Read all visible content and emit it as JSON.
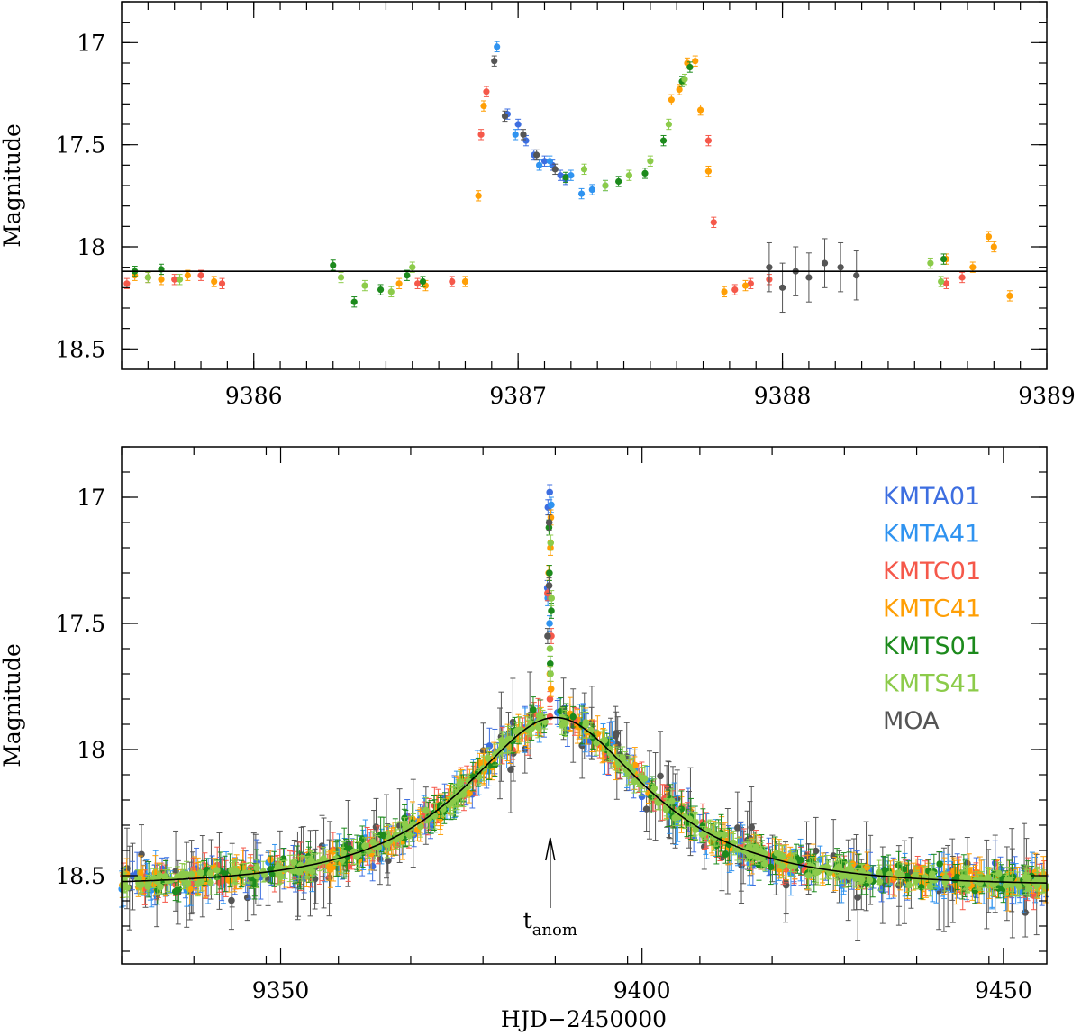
{
  "colors": {
    "KMTA01": "#3d6ee0",
    "KMTA41": "#2f93f0",
    "KMTC01": "#f5584a",
    "KMTC41": "#ff9f05",
    "KMTS01": "#1c8a1c",
    "KMTS41": "#8ccb4a",
    "MOA": "#555555",
    "model": "#000000"
  },
  "chart_data": [
    {
      "type": "scatter",
      "panel": "top",
      "xlim": [
        9385.5,
        9389.0
      ],
      "ylim": [
        18.6,
        16.8
      ],
      "y_inverted": true,
      "xticks": [
        9386,
        9387,
        9388,
        9389
      ],
      "xtick_labels": [
        "9386",
        "9387",
        "9388",
        "9389"
      ],
      "yticks": [
        17.0,
        17.5,
        18.0,
        18.5
      ],
      "ytick_labels": [
        "17",
        "17.5",
        "18",
        "18.5"
      ],
      "xlabel": "",
      "ylabel": "Magnitude",
      "model_line": {
        "description": "baseline",
        "x": [
          9385.5,
          9389.0
        ],
        "y": [
          18.12,
          18.12
        ]
      },
      "series": [
        {
          "name": "KMTA01",
          "points": [
            [
              9386.96,
              17.35
            ],
            [
              9387.0,
              17.4
            ],
            [
              9387.03,
              17.48
            ],
            [
              9387.06,
              17.55
            ],
            [
              9387.1,
              17.58
            ],
            [
              9387.13,
              17.6
            ],
            [
              9387.16,
              17.65
            ],
            [
              9387.18,
              17.67
            ]
          ]
        },
        {
          "name": "KMTA41",
          "points": [
            [
              9386.92,
              17.02
            ],
            [
              9386.99,
              17.45
            ],
            [
              9387.08,
              17.6
            ],
            [
              9387.12,
              17.58
            ],
            [
              9387.2,
              17.65
            ],
            [
              9387.24,
              17.74
            ],
            [
              9387.28,
              17.72
            ],
            [
              9387.33,
              17.7
            ]
          ]
        },
        {
          "name": "KMTC01",
          "points": [
            [
              9385.52,
              18.18
            ],
            [
              9385.6,
              18.15
            ],
            [
              9385.7,
              18.16
            ],
            [
              9385.8,
              18.14
            ],
            [
              9385.88,
              18.18
            ],
            [
              9386.62,
              18.18
            ],
            [
              9386.75,
              18.17
            ],
            [
              9386.86,
              17.45
            ],
            [
              9386.88,
              17.24
            ],
            [
              9387.72,
              17.48
            ],
            [
              9387.74,
              17.88
            ],
            [
              9387.82,
              18.21
            ],
            [
              9387.88,
              18.18
            ],
            [
              9387.95,
              18.16
            ],
            [
              9388.62,
              18.18
            ],
            [
              9388.68,
              18.15
            ]
          ]
        },
        {
          "name": "KMTC41",
          "points": [
            [
              9385.55,
              18.14
            ],
            [
              9385.65,
              18.16
            ],
            [
              9385.75,
              18.14
            ],
            [
              9385.85,
              18.17
            ],
            [
              9386.55,
              18.18
            ],
            [
              9386.65,
              18.19
            ],
            [
              9386.8,
              18.17
            ],
            [
              9386.85,
              17.75
            ],
            [
              9386.87,
              17.31
            ],
            [
              9387.58,
              17.28
            ],
            [
              9387.61,
              17.23
            ],
            [
              9387.64,
              17.1
            ],
            [
              9387.67,
              17.09
            ],
            [
              9387.69,
              17.33
            ],
            [
              9387.72,
              17.63
            ],
            [
              9387.78,
              18.22
            ],
            [
              9387.86,
              18.19
            ],
            [
              9388.62,
              18.06
            ],
            [
              9388.72,
              18.1
            ],
            [
              9388.78,
              17.95
            ],
            [
              9388.8,
              18.0
            ],
            [
              9388.86,
              18.24
            ]
          ]
        },
        {
          "name": "KMTS01",
          "points": [
            [
              9385.55,
              18.12
            ],
            [
              9385.65,
              18.11
            ],
            [
              9386.3,
              18.09
            ],
            [
              9386.38,
              18.27
            ],
            [
              9386.48,
              18.21
            ],
            [
              9386.58,
              18.14
            ],
            [
              9386.64,
              18.17
            ],
            [
              9387.18,
              17.66
            ],
            [
              9387.38,
              17.68
            ],
            [
              9387.48,
              17.64
            ],
            [
              9387.55,
              17.48
            ],
            [
              9387.62,
              17.19
            ],
            [
              9387.65,
              17.12
            ],
            [
              9388.61,
              18.06
            ]
          ]
        },
        {
          "name": "KMTS41",
          "points": [
            [
              9385.6,
              18.15
            ],
            [
              9385.72,
              18.16
            ],
            [
              9386.33,
              18.15
            ],
            [
              9386.42,
              18.19
            ],
            [
              9386.52,
              18.22
            ],
            [
              9386.6,
              18.1
            ],
            [
              9387.25,
              17.62
            ],
            [
              9387.33,
              17.7
            ],
            [
              9387.42,
              17.65
            ],
            [
              9387.5,
              17.58
            ],
            [
              9387.57,
              17.4
            ],
            [
              9387.63,
              17.18
            ],
            [
              9388.56,
              18.08
            ],
            [
              9388.6,
              18.17
            ]
          ]
        },
        {
          "name": "MOA",
          "points": [
            [
              9386.91,
              17.09
            ],
            [
              9386.95,
              17.36
            ],
            [
              9387.02,
              17.45
            ],
            [
              9387.07,
              17.55
            ],
            [
              9387.14,
              17.62
            ],
            [
              9387.95,
              18.1
            ],
            [
              9388.0,
              18.2
            ],
            [
              9388.05,
              18.12
            ],
            [
              9388.1,
              18.15
            ],
            [
              9388.16,
              18.08
            ],
            [
              9388.22,
              18.1
            ],
            [
              9388.28,
              18.14
            ]
          ]
        }
      ]
    },
    {
      "type": "scatter",
      "panel": "bottom",
      "xlim": [
        9328,
        9456
      ],
      "ylim": [
        18.85,
        16.8
      ],
      "y_inverted": true,
      "xticks": [
        9350,
        9400,
        9450
      ],
      "xtick_labels": [
        "9350",
        "9400",
        "9450"
      ],
      "yticks": [
        17.0,
        17.5,
        18.0,
        18.5
      ],
      "ytick_labels": [
        "17",
        "17.5",
        "18",
        "18.5"
      ],
      "xlabel": "HJD−2450000",
      "ylabel": "Magnitude",
      "model_line": {
        "description": "single-lens Paczynski curve",
        "t0": 9388.0,
        "tE": 20,
        "u0": 0.59,
        "baseline_mag": 18.54
      },
      "anomaly_marker": {
        "x": 9387.3,
        "label_main": "t",
        "label_sub": "anom"
      },
      "anomaly_points": [
        {
          "name": "KMTA01",
          "y": [
            16.98,
            17.04,
            17.36
          ]
        },
        {
          "name": "KMTA41",
          "y": [
            17.03,
            17.4,
            17.5
          ]
        },
        {
          "name": "KMTC01",
          "y": [
            17.38,
            17.55,
            17.8,
            17.87
          ]
        },
        {
          "name": "KMTC41",
          "y": [
            17.08,
            17.2,
            17.3,
            17.7,
            17.76
          ]
        },
        {
          "name": "KMTS01",
          "y": [
            17.12,
            17.3,
            17.45,
            17.66
          ]
        },
        {
          "name": "KMTS41",
          "y": [
            17.18,
            17.4,
            17.6,
            17.7
          ]
        },
        {
          "name": "MOA",
          "y": [
            17.1,
            17.35,
            17.55
          ]
        }
      ],
      "legend": {
        "placement": "top-right",
        "entries": [
          "KMTA01",
          "KMTA41",
          "KMTC01",
          "KMTC41",
          "KMTS01",
          "KMTS41",
          "MOA"
        ]
      }
    }
  ]
}
